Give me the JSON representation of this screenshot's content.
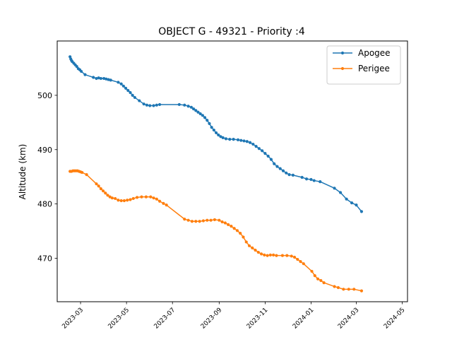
{
  "chart_data": {
    "type": "line",
    "title": "OBJECT G - 49321 - Priority :4",
    "xlabel": "",
    "ylabel": "Altitude (km)",
    "xlim": [
      "2023-01-29",
      "2024-05-08"
    ],
    "ylim": [
      462,
      510
    ],
    "x_ticks": [
      "2023-03",
      "2023-05",
      "2023-07",
      "2023-09",
      "2023-11",
      "2024-01",
      "2024-03",
      "2024-05"
    ],
    "y_ticks": [
      470,
      480,
      490,
      500
    ],
    "legend_position": "upper right",
    "grid": false,
    "series": [
      {
        "name": "Apogee",
        "color": "#1f77b4",
        "marker": "circle",
        "points": [
          [
            "2023-02-15",
            507.1
          ],
          [
            "2023-02-16",
            506.7
          ],
          [
            "2023-02-17",
            506.4
          ],
          [
            "2023-02-18",
            506.2
          ],
          [
            "2023-02-20",
            505.9
          ],
          [
            "2023-02-22",
            505.6
          ],
          [
            "2023-02-24",
            505.3
          ],
          [
            "2023-02-26",
            504.9
          ],
          [
            "2023-02-28",
            504.7
          ],
          [
            "2023-03-02",
            504.4
          ],
          [
            "2023-03-07",
            503.8
          ],
          [
            "2023-03-18",
            503.3
          ],
          [
            "2023-03-22",
            503.1
          ],
          [
            "2023-03-25",
            503.2
          ],
          [
            "2023-03-28",
            503.1
          ],
          [
            "2023-04-01",
            503.1
          ],
          [
            "2023-04-04",
            503.0
          ],
          [
            "2023-04-07",
            502.9
          ],
          [
            "2023-04-10",
            502.8
          ],
          [
            "2023-04-20",
            502.4
          ],
          [
            "2023-04-24",
            502.1
          ],
          [
            "2023-04-27",
            501.7
          ],
          [
            "2023-04-30",
            501.3
          ],
          [
            "2023-05-03",
            500.9
          ],
          [
            "2023-05-06",
            500.5
          ],
          [
            "2023-05-09",
            500.0
          ],
          [
            "2023-05-12",
            499.6
          ],
          [
            "2023-05-18",
            499.0
          ],
          [
            "2023-05-24",
            498.4
          ],
          [
            "2023-05-28",
            498.2
          ],
          [
            "2023-06-01",
            498.1
          ],
          [
            "2023-06-06",
            498.1
          ],
          [
            "2023-06-10",
            498.2
          ],
          [
            "2023-06-14",
            498.3
          ],
          [
            "2023-07-10",
            498.3
          ],
          [
            "2023-07-17",
            498.2
          ],
          [
            "2023-07-22",
            498.0
          ],
          [
            "2023-07-26",
            497.8
          ],
          [
            "2023-07-29",
            497.5
          ],
          [
            "2023-08-01",
            497.2
          ],
          [
            "2023-08-04",
            496.9
          ],
          [
            "2023-08-07",
            496.6
          ],
          [
            "2023-08-10",
            496.3
          ],
          [
            "2023-08-13",
            495.9
          ],
          [
            "2023-08-16",
            495.4
          ],
          [
            "2023-08-19",
            494.8
          ],
          [
            "2023-08-22",
            494.1
          ],
          [
            "2023-08-25",
            493.6
          ],
          [
            "2023-08-28",
            493.1
          ],
          [
            "2023-08-31",
            492.7
          ],
          [
            "2023-09-03",
            492.4
          ],
          [
            "2023-09-06",
            492.2
          ],
          [
            "2023-09-10",
            492.0
          ],
          [
            "2023-09-15",
            491.9
          ],
          [
            "2023-09-20",
            491.9
          ],
          [
            "2023-09-26",
            491.8
          ],
          [
            "2023-09-30",
            491.7
          ],
          [
            "2023-10-04",
            491.6
          ],
          [
            "2023-10-08",
            491.5
          ],
          [
            "2023-10-12",
            491.3
          ],
          [
            "2023-10-16",
            491.0
          ],
          [
            "2023-10-20",
            490.6
          ],
          [
            "2023-10-24",
            490.2
          ],
          [
            "2023-10-28",
            489.8
          ],
          [
            "2023-11-01",
            489.3
          ],
          [
            "2023-11-05",
            488.8
          ],
          [
            "2023-11-09",
            488.2
          ],
          [
            "2023-11-13",
            487.4
          ],
          [
            "2023-11-17",
            486.9
          ],
          [
            "2023-11-21",
            486.5
          ],
          [
            "2023-11-25",
            486.1
          ],
          [
            "2023-11-29",
            485.7
          ],
          [
            "2023-12-03",
            485.4
          ],
          [
            "2023-12-08",
            485.3
          ],
          [
            "2023-12-20",
            484.9
          ],
          [
            "2023-12-26",
            484.6
          ],
          [
            "2024-01-01",
            484.5
          ],
          [
            "2024-01-05",
            484.3
          ],
          [
            "2024-01-13",
            484.1
          ],
          [
            "2024-02-01",
            482.9
          ],
          [
            "2024-02-09",
            482.1
          ],
          [
            "2024-02-17",
            480.9
          ],
          [
            "2024-02-24",
            480.2
          ],
          [
            "2024-03-01",
            479.8
          ],
          [
            "2024-03-08",
            478.6
          ]
        ]
      },
      {
        "name": "Perigee",
        "color": "#ff7f0e",
        "marker": "circle",
        "points": [
          [
            "2023-02-15",
            486.0
          ],
          [
            "2023-02-17",
            486.0
          ],
          [
            "2023-02-19",
            486.1
          ],
          [
            "2023-02-21",
            486.1
          ],
          [
            "2023-02-23",
            486.1
          ],
          [
            "2023-02-25",
            486.1
          ],
          [
            "2023-02-27",
            486.0
          ],
          [
            "2023-03-01",
            485.9
          ],
          [
            "2023-03-03",
            485.8
          ],
          [
            "2023-03-09",
            485.4
          ],
          [
            "2023-03-22",
            483.7
          ],
          [
            "2023-03-25",
            483.3
          ],
          [
            "2023-03-28",
            482.8
          ],
          [
            "2023-03-31",
            482.4
          ],
          [
            "2023-04-03",
            482.0
          ],
          [
            "2023-04-06",
            481.6
          ],
          [
            "2023-04-09",
            481.3
          ],
          [
            "2023-04-12",
            481.1
          ],
          [
            "2023-04-16",
            481.0
          ],
          [
            "2023-04-20",
            480.7
          ],
          [
            "2023-04-24",
            480.6
          ],
          [
            "2023-04-28",
            480.6
          ],
          [
            "2023-05-02",
            480.7
          ],
          [
            "2023-05-06",
            480.8
          ],
          [
            "2023-05-10",
            481.0
          ],
          [
            "2023-05-15",
            481.2
          ],
          [
            "2023-05-21",
            481.3
          ],
          [
            "2023-05-27",
            481.3
          ],
          [
            "2023-06-02",
            481.3
          ],
          [
            "2023-06-06",
            481.1
          ],
          [
            "2023-06-10",
            480.9
          ],
          [
            "2023-06-14",
            480.5
          ],
          [
            "2023-06-19",
            480.1
          ],
          [
            "2023-06-23",
            479.8
          ],
          [
            "2023-07-17",
            477.2
          ],
          [
            "2023-07-22",
            477.0
          ],
          [
            "2023-07-27",
            476.8
          ],
          [
            "2023-08-01",
            476.8
          ],
          [
            "2023-08-06",
            476.8
          ],
          [
            "2023-08-11",
            476.9
          ],
          [
            "2023-08-16",
            477.0
          ],
          [
            "2023-08-21",
            477.0
          ],
          [
            "2023-08-26",
            477.1
          ],
          [
            "2023-09-01",
            477.0
          ],
          [
            "2023-09-05",
            476.7
          ],
          [
            "2023-09-09",
            476.5
          ],
          [
            "2023-09-13",
            476.2
          ],
          [
            "2023-09-17",
            475.9
          ],
          [
            "2023-09-21",
            475.5
          ],
          [
            "2023-09-25",
            475.1
          ],
          [
            "2023-09-29",
            474.6
          ],
          [
            "2023-10-03",
            473.9
          ],
          [
            "2023-10-07",
            473.0
          ],
          [
            "2023-10-11",
            472.3
          ],
          [
            "2023-10-15",
            471.9
          ],
          [
            "2023-10-19",
            471.5
          ],
          [
            "2023-10-23",
            471.1
          ],
          [
            "2023-10-27",
            470.8
          ],
          [
            "2023-10-31",
            470.6
          ],
          [
            "2023-11-04",
            470.5
          ],
          [
            "2023-11-08",
            470.6
          ],
          [
            "2023-11-12",
            470.6
          ],
          [
            "2023-11-16",
            470.5
          ],
          [
            "2023-11-24",
            470.5
          ],
          [
            "2023-11-30",
            470.5
          ],
          [
            "2023-12-06",
            470.4
          ],
          [
            "2023-12-10",
            470.2
          ],
          [
            "2023-12-14",
            469.8
          ],
          [
            "2023-12-18",
            469.4
          ],
          [
            "2023-12-22",
            469.0
          ],
          [
            "2024-01-02",
            467.6
          ],
          [
            "2024-01-06",
            466.8
          ],
          [
            "2024-01-10",
            466.2
          ],
          [
            "2024-01-14",
            465.9
          ],
          [
            "2024-01-18",
            465.5
          ],
          [
            "2024-02-01",
            464.8
          ],
          [
            "2024-02-06",
            464.6
          ],
          [
            "2024-02-13",
            464.3
          ],
          [
            "2024-02-20",
            464.3
          ],
          [
            "2024-02-27",
            464.3
          ],
          [
            "2024-03-08",
            464.0
          ]
        ]
      }
    ]
  }
}
